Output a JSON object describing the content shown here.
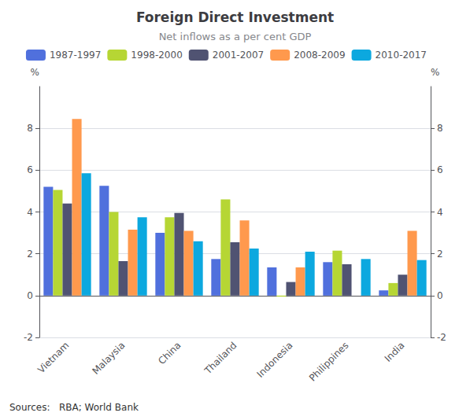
{
  "chart_data": {
    "type": "bar",
    "title": "Foreign Direct Investment",
    "subtitle": "Net inflows as a per cent GDP",
    "ylabel": "%",
    "y2label": "%",
    "annotations": [
      "Sources:   RBA; World Bank"
    ],
    "categories": [
      "Vietnam",
      "Malaysia",
      "China",
      "Thailand",
      "Indonesia",
      "Philippines",
      "India"
    ],
    "series": [
      {
        "name": "1987-1997",
        "values": [
          5.2,
          5.25,
          3.0,
          1.75,
          1.35,
          1.6,
          0.25
        ]
      },
      {
        "name": "1998-2000",
        "values": [
          5.05,
          4.0,
          3.75,
          4.6,
          -0.05,
          2.15,
          0.6
        ]
      },
      {
        "name": "2001-2007",
        "values": [
          4.4,
          1.65,
          3.95,
          2.55,
          0.65,
          1.5,
          1.0
        ]
      },
      {
        "name": "2008-2009",
        "values": [
          8.45,
          3.15,
          3.1,
          3.6,
          1.35,
          0.0,
          3.1
        ]
      },
      {
        "name": "2010-2017",
        "values": [
          5.85,
          3.75,
          2.6,
          2.25,
          2.1,
          1.75,
          1.7
        ]
      }
    ],
    "ylim": [
      -2,
      10
    ],
    "yticks": [
      -2,
      0,
      2,
      4,
      6,
      8
    ],
    "y2lim": [
      -2,
      10
    ],
    "y2ticks": [
      -2,
      0,
      2,
      4,
      6,
      8
    ],
    "grid": true,
    "legend": "upper right"
  }
}
